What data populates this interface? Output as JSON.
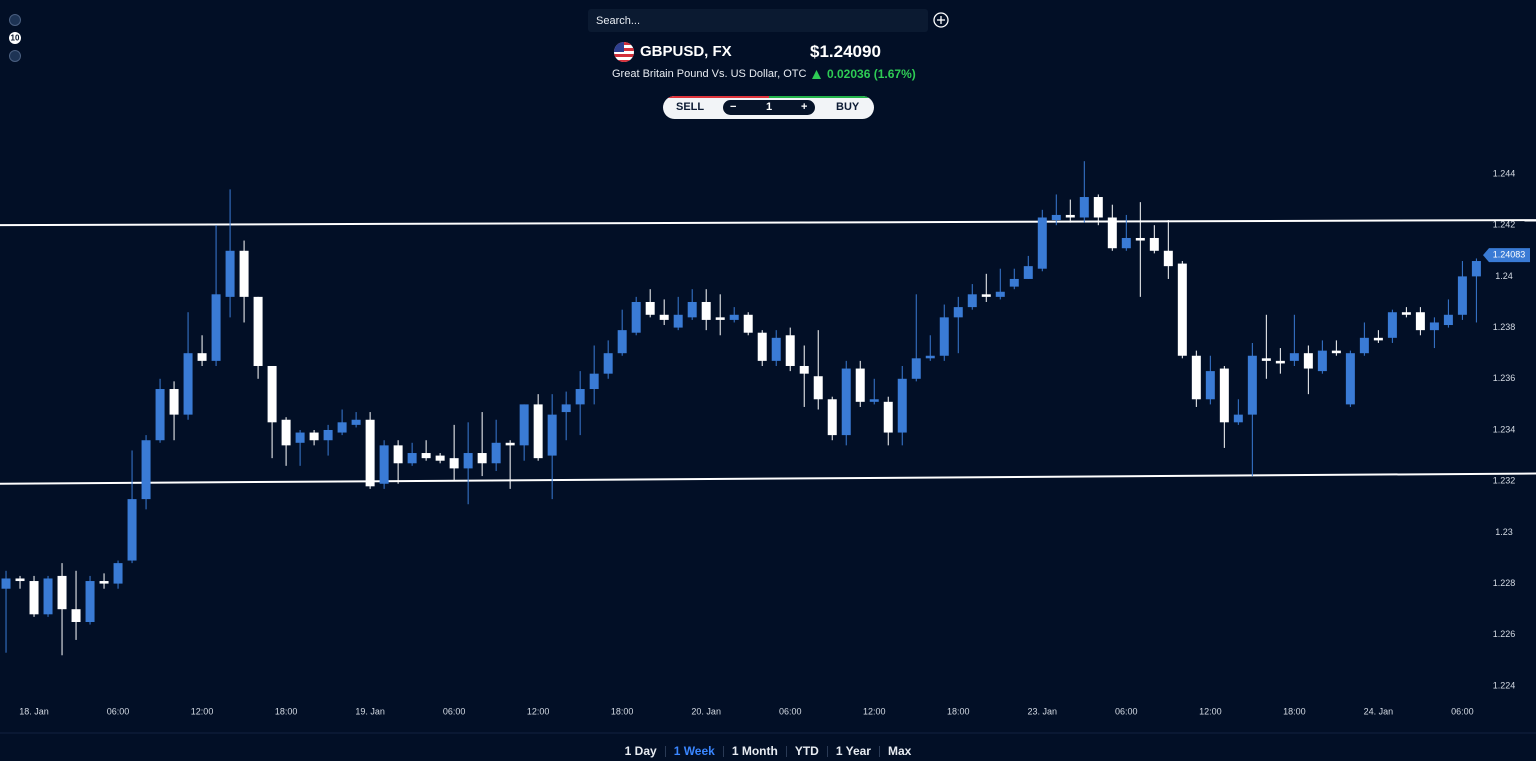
{
  "sidebar": {
    "badge": "10"
  },
  "search": {
    "placeholder": "Search..."
  },
  "instrument": {
    "symbol": "GBPUSD, FX",
    "price": "$1.24090",
    "description": "Great Britain Pound Vs. US Dollar, OTC",
    "change": "0.02036 (1.67%)"
  },
  "trade": {
    "sell": "SELL",
    "minus": "−",
    "quantity": "1",
    "plus": "+",
    "buy": "BUY"
  },
  "ranges": [
    "1 Day",
    "1 Week",
    "1 Month",
    "YTD",
    "1 Year",
    "Max"
  ],
  "active_range": 1,
  "chart_data": {
    "type": "candlestick",
    "up_color": "#3a7bd5",
    "down_color": "#ffffff",
    "x": [
      -2,
      -1,
      0,
      1,
      2,
      3,
      4,
      5,
      6,
      7,
      8,
      9,
      10,
      11,
      12,
      13,
      14,
      15,
      16,
      17,
      18,
      19,
      20,
      21,
      22,
      23,
      24,
      25,
      26,
      27,
      28,
      29,
      30,
      31,
      32,
      33,
      34,
      35,
      36,
      37,
      38,
      39,
      40,
      41,
      42,
      43,
      44,
      45,
      46,
      47,
      48,
      49,
      50,
      51,
      52,
      53,
      54,
      55,
      56,
      57,
      58,
      59,
      60,
      61,
      62,
      63,
      64,
      65,
      66,
      67,
      68,
      69,
      70,
      71,
      72,
      73,
      74,
      75,
      76,
      77,
      78,
      79,
      80,
      81,
      82,
      83,
      84,
      85,
      86,
      87,
      88,
      89,
      90,
      91,
      92,
      93,
      94,
      95,
      96,
      97,
      98,
      99,
      100,
      101,
      102,
      103
    ],
    "open": [
      1.2278,
      1.2282,
      1.2281,
      1.2268,
      1.2283,
      1.227,
      1.2265,
      1.2281,
      1.228,
      1.2289,
      1.2313,
      1.2336,
      1.2356,
      1.2346,
      1.237,
      1.2367,
      1.2392,
      1.241,
      1.2392,
      1.2365,
      1.2344,
      1.2335,
      1.2339,
      1.2336,
      1.2339,
      1.2342,
      1.2344,
      1.2319,
      1.2334,
      1.2327,
      1.2331,
      1.233,
      1.2329,
      1.2325,
      1.2331,
      1.2327,
      1.2335,
      1.2334,
      1.235,
      1.233,
      1.2347,
      1.235,
      1.2356,
      1.2362,
      1.237,
      1.2378,
      1.239,
      1.2385,
      1.238,
      1.2384,
      1.239,
      1.2384,
      1.2383,
      1.2385,
      1.2378,
      1.2367,
      1.2377,
      1.2365,
      1.2361,
      1.2352,
      1.2338,
      1.2364,
      1.2351,
      1.2351,
      1.2339,
      1.236,
      1.2368,
      1.2369,
      1.2384,
      1.2388,
      1.2393,
      1.2392,
      1.2396,
      1.2399,
      1.2403,
      1.2422,
      1.2424,
      1.2423,
      1.2431,
      1.2423,
      1.2411,
      1.2415,
      1.2415,
      1.241,
      1.2405,
      1.2369,
      1.2352,
      1.2364,
      1.2343,
      1.2346,
      1.2368,
      1.2367,
      1.2367,
      1.237,
      1.2363,
      1.2371,
      1.235,
      1.237,
      1.2376,
      1.2376,
      1.2386,
      1.2386,
      1.2379,
      1.2381,
      1.2385,
      1.24
    ],
    "high": [
      1.2285,
      1.2283,
      1.2283,
      1.2283,
      1.2288,
      1.2285,
      1.2283,
      1.2284,
      1.2289,
      1.2332,
      1.2338,
      1.236,
      1.2359,
      1.2386,
      1.2377,
      1.242,
      1.2434,
      1.2414,
      1.2392,
      1.2365,
      1.2345,
      1.234,
      1.234,
      1.2342,
      1.2348,
      1.2347,
      1.2347,
      1.2336,
      1.2336,
      1.2335,
      1.2336,
      1.2331,
      1.2342,
      1.2343,
      1.2347,
      1.2344,
      1.2336,
      1.235,
      1.2354,
      1.2354,
      1.2355,
      1.2363,
      1.2373,
      1.2375,
      1.2387,
      1.2392,
      1.2395,
      1.2391,
      1.2392,
      1.2395,
      1.2395,
      1.2393,
      1.2388,
      1.2386,
      1.2379,
      1.2379,
      1.238,
      1.2373,
      1.2379,
      1.2353,
      1.2367,
      1.2367,
      1.236,
      1.2353,
      1.2365,
      1.2393,
      1.2377,
      1.2389,
      1.2392,
      1.2397,
      1.2401,
      1.2403,
      1.2403,
      1.2408,
      1.2426,
      1.2432,
      1.243,
      1.2445,
      1.2432,
      1.2428,
      1.2424,
      1.2429,
      1.242,
      1.2422,
      1.2406,
      1.2371,
      1.2369,
      1.2365,
      1.2352,
      1.2374,
      1.2385,
      1.2372,
      1.2385,
      1.2373,
      1.2375,
      1.2375,
      1.2371,
      1.2382,
      1.2379,
      1.2387,
      1.2388,
      1.2388,
      1.2384,
      1.2391,
      1.2406,
      1.2407
    ],
    "low": [
      1.2253,
      1.2278,
      1.2267,
      1.2267,
      1.2252,
      1.2258,
      1.2264,
      1.2278,
      1.2278,
      1.2288,
      1.2309,
      1.2335,
      1.2336,
      1.2344,
      1.2365,
      1.2365,
      1.2384,
      1.2382,
      1.236,
      1.2329,
      1.2326,
      1.2326,
      1.2334,
      1.233,
      1.2338,
      1.2341,
      1.2317,
      1.2317,
      1.2319,
      1.2326,
      1.2328,
      1.2327,
      1.232,
      1.2311,
      1.2322,
      1.2324,
      1.2317,
      1.2328,
      1.2328,
      1.2313,
      1.2336,
      1.2338,
      1.235,
      1.236,
      1.2369,
      1.2377,
      1.2384,
      1.2381,
      1.2379,
      1.2383,
      1.2379,
      1.2377,
      1.2382,
      1.2377,
      1.2365,
      1.2365,
      1.2363,
      1.2349,
      1.2348,
      1.2336,
      1.2334,
      1.2349,
      1.235,
      1.2334,
      1.2334,
      1.2359,
      1.2367,
      1.2367,
      1.237,
      1.2387,
      1.239,
      1.2391,
      1.2395,
      1.2399,
      1.2402,
      1.242,
      1.2421,
      1.2421,
      1.242,
      1.241,
      1.241,
      1.2392,
      1.2409,
      1.2399,
      1.2368,
      1.2349,
      1.235,
      1.2333,
      1.2342,
      1.2322,
      1.236,
      1.2362,
      1.2365,
      1.2354,
      1.2362,
      1.2369,
      1.2349,
      1.2369,
      1.2374,
      1.2374,
      1.2384,
      1.2377,
      1.2372,
      1.238,
      1.2383,
      1.2382
    ],
    "close": [
      1.2282,
      1.2281,
      1.2268,
      1.2282,
      1.227,
      1.2265,
      1.2281,
      1.228,
      1.2288,
      1.2313,
      1.2336,
      1.2356,
      1.2346,
      1.237,
      1.2367,
      1.2393,
      1.241,
      1.2392,
      1.2365,
      1.2343,
      1.2334,
      1.2339,
      1.2336,
      1.234,
      1.2343,
      1.2344,
      1.2318,
      1.2334,
      1.2327,
      1.2331,
      1.2329,
      1.2328,
      1.2325,
      1.2331,
      1.2327,
      1.2335,
      1.2334,
      1.235,
      1.2329,
      1.2346,
      1.235,
      1.2356,
      1.2362,
      1.237,
      1.2379,
      1.239,
      1.2385,
      1.2383,
      1.2385,
      1.239,
      1.2383,
      1.2383,
      1.2385,
      1.2378,
      1.2367,
      1.2376,
      1.2365,
      1.2362,
      1.2352,
      1.2338,
      1.2364,
      1.2351,
      1.2352,
      1.2339,
      1.236,
      1.2368,
      1.2369,
      1.2384,
      1.2388,
      1.2393,
      1.2392,
      1.2394,
      1.2399,
      1.2404,
      1.2423,
      1.2424,
      1.2423,
      1.2431,
      1.2423,
      1.2411,
      1.2415,
      1.2414,
      1.241,
      1.2404,
      1.2369,
      1.2352,
      1.2363,
      1.2343,
      1.2346,
      1.2369,
      1.2367,
      1.2366,
      1.237,
      1.2364,
      1.2371,
      1.237,
      1.237,
      1.2376,
      1.2375,
      1.2386,
      1.2385,
      1.2379,
      1.2382,
      1.2385,
      1.24,
      1.2406
    ],
    "xlim": [
      -2.43,
      103.4
    ],
    "ylim": [
      1.2235,
      1.2453
    ],
    "xticks": [
      {
        "value": 0,
        "label": "18. Jan"
      },
      {
        "value": 6,
        "label": "06:00"
      },
      {
        "value": 12,
        "label": "12:00"
      },
      {
        "value": 18,
        "label": "18:00"
      },
      {
        "value": 24,
        "label": "19. Jan"
      },
      {
        "value": 30,
        "label": "06:00"
      },
      {
        "value": 36,
        "label": "12:00"
      },
      {
        "value": 42,
        "label": "18:00"
      },
      {
        "value": 48,
        "label": "20. Jan"
      },
      {
        "value": 54,
        "label": "06:00"
      },
      {
        "value": 60,
        "label": "12:00"
      },
      {
        "value": 66,
        "label": "18:00"
      },
      {
        "value": 72,
        "label": "23. Jan"
      },
      {
        "value": 78,
        "label": "06:00"
      },
      {
        "value": 84,
        "label": "12:00"
      },
      {
        "value": 90,
        "label": "18:00"
      },
      {
        "value": 96,
        "label": "24. Jan"
      },
      {
        "value": 102,
        "label": "06:00"
      }
    ],
    "yticks": [
      1.224,
      1.226,
      1.228,
      1.23,
      1.232,
      1.234,
      1.236,
      1.238,
      1.24,
      1.242,
      1.244
    ],
    "last_price": 1.24083,
    "trendlines": [
      {
        "values": [
          1.242,
          1.2422
        ]
      },
      {
        "values": [
          1.2319,
          1.2323
        ]
      }
    ],
    "grid": false
  }
}
